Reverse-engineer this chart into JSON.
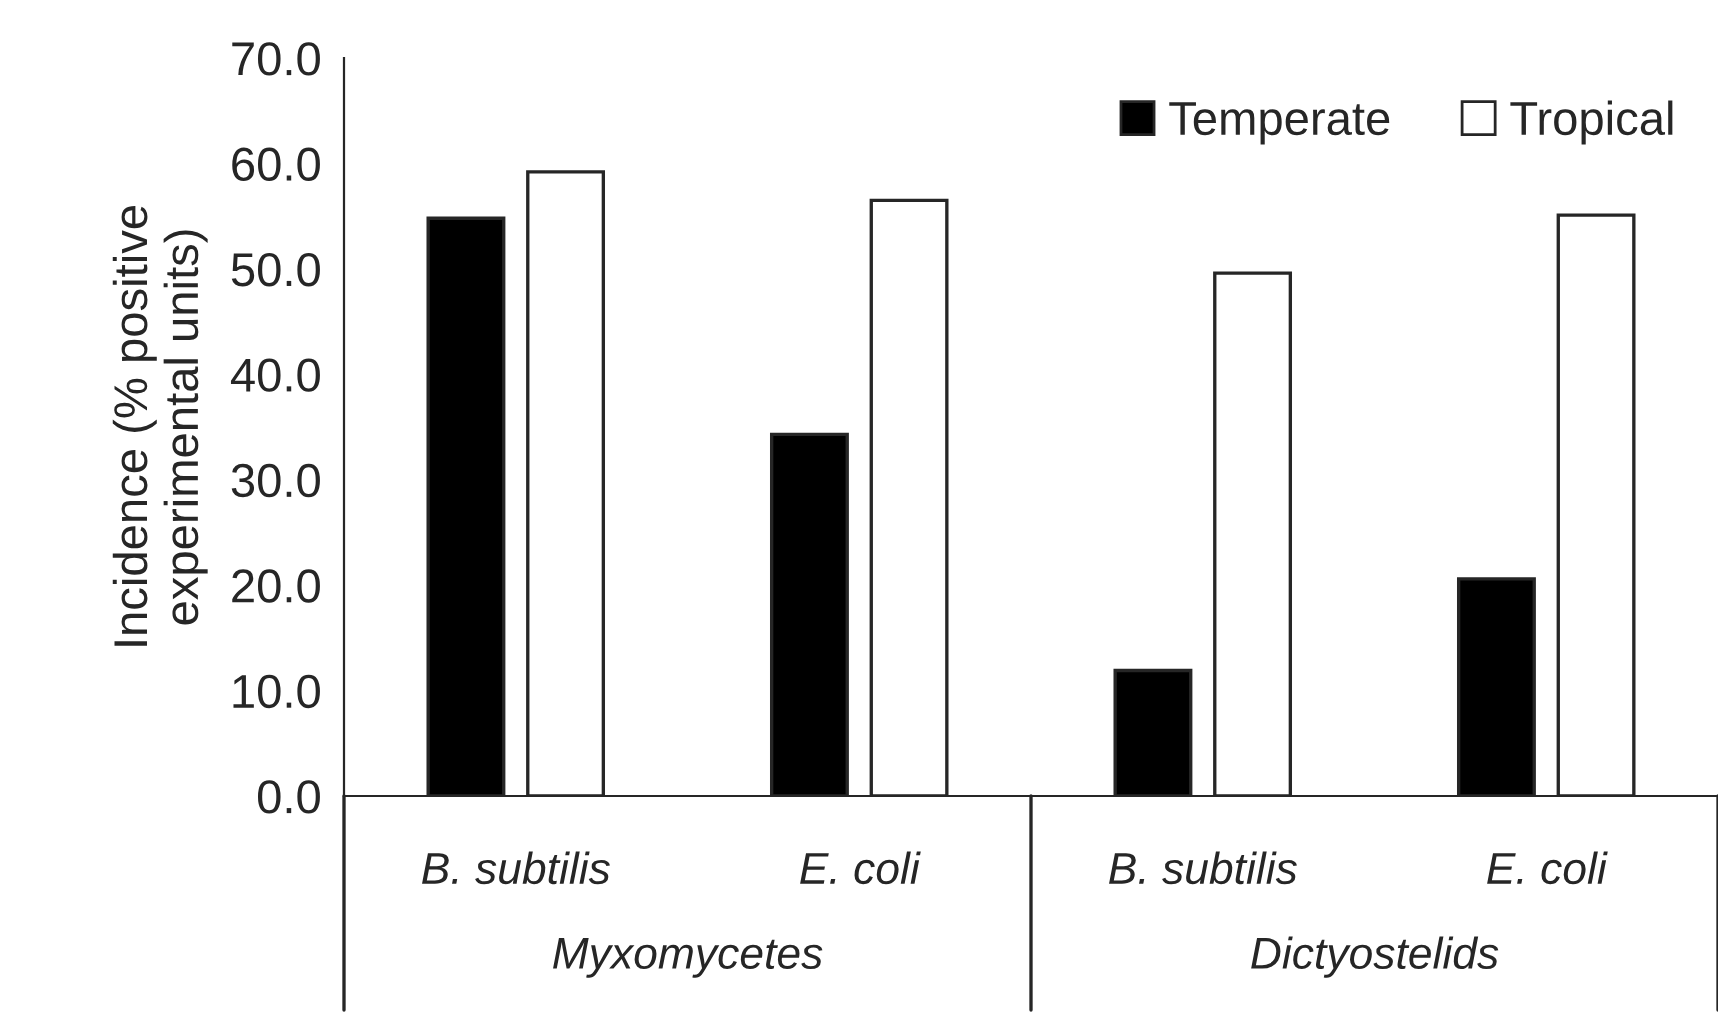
{
  "chart_data": {
    "type": "bar",
    "ylabel": "Incidence (% positive\nexperimental units)",
    "categories": [
      "B. subtilis",
      "E. coli",
      "B. subtilis",
      "E. coli"
    ],
    "series": [
      {
        "name": "Temperate",
        "color": "#000000",
        "values": [
          54.8,
          34.3,
          11.9,
          20.6
        ]
      },
      {
        "name": "Tropical",
        "color": "#ffffff",
        "values": [
          59.2,
          56.5,
          49.6,
          55.1
        ]
      }
    ],
    "ylim": [
      0,
      70
    ],
    "yticks": [
      {
        "value": 0,
        "label": "0.0"
      },
      {
        "value": 10,
        "label": "10.0"
      },
      {
        "value": 20,
        "label": "20.0"
      },
      {
        "value": 30,
        "label": "30.0"
      },
      {
        "value": 40,
        "label": "40.0"
      },
      {
        "value": 50,
        "label": "50.0"
      },
      {
        "value": 60,
        "label": "60.0"
      },
      {
        "value": 70,
        "label": "70.0"
      }
    ],
    "annotations": [
      "Myxomycetes",
      "Dictyostelids"
    ],
    "legend": "top right",
    "grid": false
  }
}
